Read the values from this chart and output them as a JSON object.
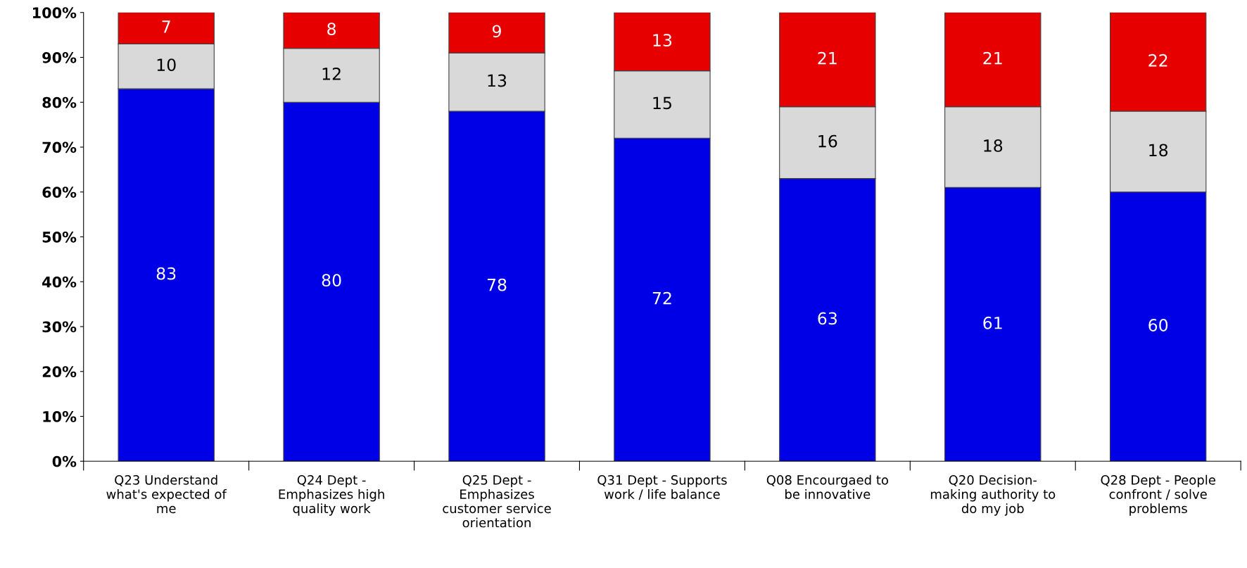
{
  "chart_data": {
    "type": "bar",
    "stacked": true,
    "data_labels": true,
    "grid": false,
    "legend": false,
    "categories": [
      "Q23 Understand\nwhat's expected of\nme",
      "Q24 Dept -\nEmphasizes high\nquality work",
      "Q25 Dept -\nEmphasizes\ncustomer service\norientation",
      "Q31 Dept - Supports\nwork / life balance",
      "Q08 Encourgaed to\nbe innovative",
      "Q20 Decision-\nmaking authority to\ndo my job",
      "Q28 Dept - People\nconfront / solve\nproblems"
    ],
    "series": [
      {
        "color": "#0000e6",
        "values": [
          83,
          80,
          78,
          72,
          63,
          61,
          60
        ]
      },
      {
        "color": "#d9d9d9",
        "values": [
          10,
          12,
          13,
          15,
          16,
          18,
          18
        ]
      },
      {
        "color": "#e60000",
        "values": [
          7,
          8,
          9,
          13,
          21,
          21,
          22
        ]
      }
    ],
    "ylim": [
      0,
      100
    ],
    "yticks": [
      {
        "value": 0,
        "label": "0%"
      },
      {
        "value": 10,
        "label": "10%"
      },
      {
        "value": 20,
        "label": "20%"
      },
      {
        "value": 30,
        "label": "30%"
      },
      {
        "value": 40,
        "label": "40%"
      },
      {
        "value": 50,
        "label": "50%"
      },
      {
        "value": 60,
        "label": "60%"
      },
      {
        "value": 70,
        "label": "70%"
      },
      {
        "value": 80,
        "label": "80%"
      },
      {
        "value": 90,
        "label": "90%"
      },
      {
        "value": 100,
        "label": "100%"
      }
    ]
  }
}
